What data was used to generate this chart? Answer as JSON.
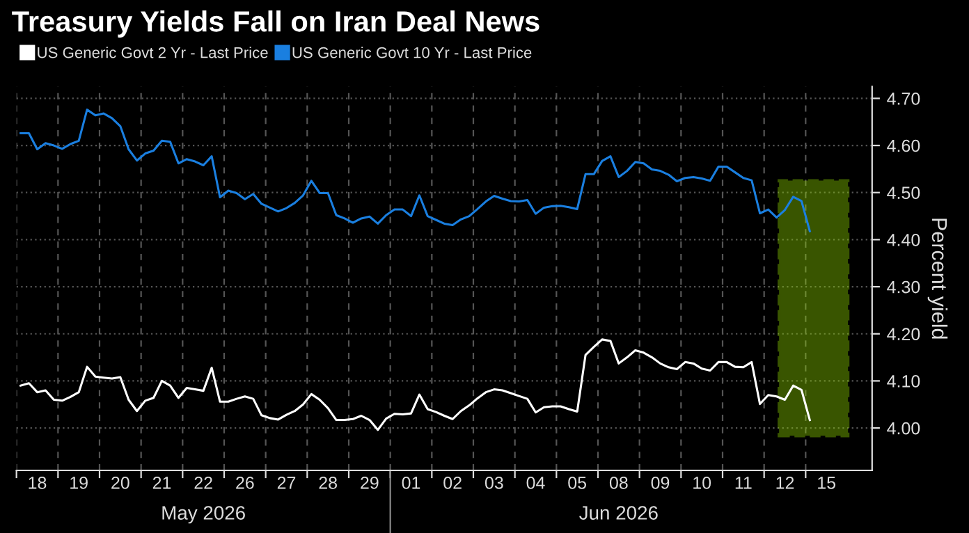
{
  "chart_data": {
    "type": "line",
    "title": "Treasury Yields Fall on Iran Deal News",
    "ylabel": "Percent yield",
    "categories": [
      null,
      null,
      "18",
      null,
      null,
      null,
      null,
      "19",
      null,
      null,
      null,
      null,
      "20",
      null,
      null,
      null,
      null,
      "21",
      null,
      null,
      null,
      null,
      "22",
      null,
      null,
      null,
      null,
      "26",
      null,
      null,
      null,
      null,
      "27",
      null,
      null,
      null,
      null,
      "28",
      null,
      null,
      null,
      null,
      "29",
      null,
      null,
      null,
      null,
      "01",
      null,
      null,
      null,
      null,
      "02",
      null,
      null,
      null,
      null,
      "03",
      null,
      null,
      null,
      null,
      "04",
      null,
      null,
      null,
      null,
      "05",
      null,
      null,
      null,
      null,
      "08",
      null,
      null,
      null,
      null,
      "09",
      null,
      null,
      null,
      null,
      "10",
      null,
      null,
      null,
      null,
      "11",
      null,
      null,
      null,
      null,
      "12",
      null,
      null,
      null,
      null,
      "15",
      null,
      null,
      null,
      null,
      null
    ],
    "series": [
      {
        "name": "US Generic Govt 2 Yr - Last Price",
        "color": "#ffffff",
        "values": [
          4.09,
          4.095,
          4.076,
          4.08,
          4.06,
          4.058,
          4.066,
          4.076,
          4.13,
          4.109,
          4.107,
          4.105,
          4.108,
          4.06,
          4.036,
          4.058,
          4.064,
          4.1,
          4.09,
          4.064,
          4.085,
          4.082,
          4.079,
          4.128,
          4.056,
          4.056,
          4.062,
          4.067,
          4.062,
          4.027,
          4.021,
          4.018,
          4.028,
          4.036,
          4.05,
          4.072,
          4.06,
          4.042,
          4.017,
          4.017,
          4.019,
          4.026,
          4.017,
          3.996,
          4.02,
          4.03,
          4.029,
          4.031,
          4.071,
          4.04,
          4.034,
          4.026,
          4.019,
          4.036,
          4.048,
          4.063,
          4.076,
          4.082,
          4.08,
          4.074,
          4.068,
          4.062,
          4.033,
          4.044,
          4.046,
          4.046,
          4.04,
          4.035,
          4.155,
          4.172,
          4.188,
          4.185,
          4.137,
          4.15,
          4.165,
          4.16,
          4.15,
          4.137,
          4.129,
          4.125,
          4.14,
          4.137,
          4.126,
          4.122,
          4.14,
          4.14,
          4.13,
          4.129,
          4.14,
          4.051,
          4.07,
          4.067,
          4.06,
          4.09,
          4.081,
          4.017,
          null,
          null,
          null,
          null,
          null,
          null,
          null
        ]
      },
      {
        "name": "US Generic Govt 10 Yr - Last Price",
        "color": "#1a7fe0",
        "values": [
          4.626,
          4.626,
          4.592,
          4.605,
          4.6,
          4.593,
          4.603,
          4.61,
          4.676,
          4.664,
          4.668,
          4.658,
          4.641,
          4.592,
          4.568,
          4.583,
          4.589,
          4.61,
          4.608,
          4.562,
          4.571,
          4.566,
          4.558,
          4.577,
          4.49,
          4.504,
          4.499,
          4.486,
          4.497,
          4.476,
          4.468,
          4.46,
          4.467,
          4.478,
          4.494,
          4.525,
          4.499,
          4.499,
          4.452,
          4.445,
          4.436,
          4.445,
          4.449,
          4.434,
          4.452,
          4.464,
          4.464,
          4.45,
          4.494,
          4.45,
          4.442,
          4.434,
          4.431,
          4.443,
          4.45,
          4.465,
          4.481,
          4.493,
          4.487,
          4.482,
          4.481,
          4.484,
          4.455,
          4.468,
          4.471,
          4.472,
          4.469,
          4.465,
          4.539,
          4.539,
          4.567,
          4.577,
          4.533,
          4.546,
          4.565,
          4.562,
          4.549,
          4.546,
          4.538,
          4.524,
          4.531,
          4.533,
          4.53,
          4.525,
          4.555,
          4.555,
          4.543,
          4.531,
          4.526,
          4.456,
          4.464,
          4.447,
          4.463,
          4.491,
          4.482,
          4.418,
          null,
          null,
          null,
          null,
          null,
          null,
          null
        ]
      }
    ],
    "ylim": [
      3.91,
      4.725
    ],
    "yticks": [
      {
        "value": 4.0,
        "label": "4.00"
      },
      {
        "value": 4.1,
        "label": "4.10"
      },
      {
        "value": 4.2,
        "label": "4.20"
      },
      {
        "value": 4.3,
        "label": "4.30"
      },
      {
        "value": 4.4,
        "label": "4.40"
      },
      {
        "value": 4.5,
        "label": "4.50"
      },
      {
        "value": 4.6,
        "label": "4.60"
      },
      {
        "value": 4.7,
        "label": "4.70"
      }
    ],
    "annotations": [
      "May 2026",
      "Jun 2026"
    ],
    "grid": true,
    "legend": "top left",
    "line_style": "solid",
    "marker": "none"
  }
}
